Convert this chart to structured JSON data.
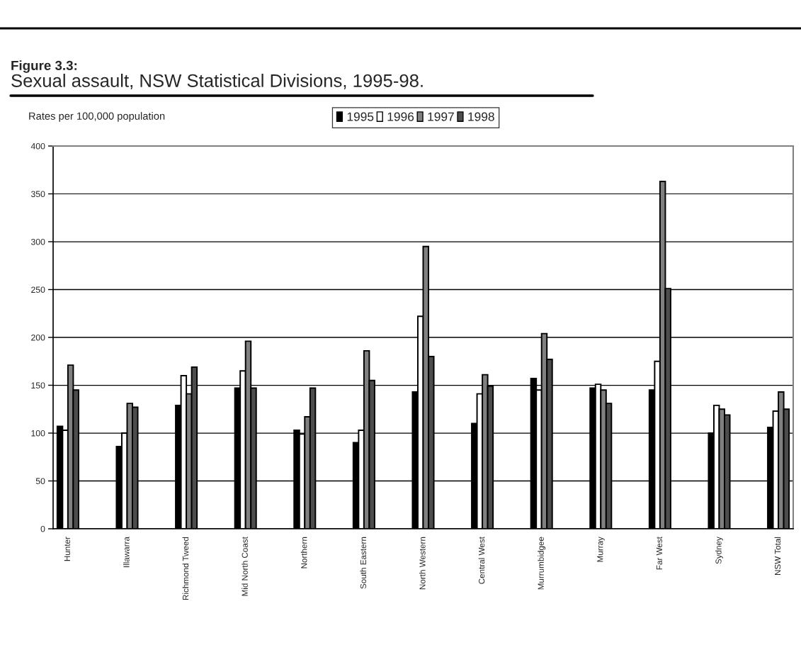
{
  "chart_data": {
    "type": "bar",
    "title": "Figure 3.3:",
    "subtitle": "Sexual assault, NSW Statistical Divisions, 1995-98.",
    "ylabel": "Rates per 100,000 population",
    "categories": [
      "Hunter",
      "Illawarra",
      "Richmond Tweed",
      "Mid North Coast",
      "Northern",
      "South Eastern",
      "North Western",
      "Central West",
      "Murrumbidgee",
      "Murray",
      "Far West",
      "Sydney",
      "NSW Total"
    ],
    "series": [
      {
        "name": "1995",
        "color": "#000000",
        "values": [
          107,
          86,
          129,
          147,
          103,
          90,
          143,
          110,
          157,
          147,
          145,
          100,
          106
        ]
      },
      {
        "name": "1996",
        "color": "#ffffff",
        "values": [
          103,
          100,
          160,
          165,
          99,
          103,
          222,
          141,
          145,
          151,
          175,
          129,
          123
        ]
      },
      {
        "name": "1997",
        "color": "#808080",
        "values": [
          171,
          131,
          141,
          196,
          117,
          186,
          295,
          161,
          204,
          145,
          363,
          125,
          143
        ]
      },
      {
        "name": "1998",
        "color": "#4d4d4d",
        "values": [
          145,
          127,
          169,
          147,
          147,
          155,
          180,
          149,
          177,
          131,
          251,
          119,
          125
        ]
      }
    ],
    "ylim": [
      0,
      400
    ],
    "yticks": [
      0,
      50,
      100,
      150,
      200,
      250,
      300,
      350,
      400
    ],
    "grid": "y",
    "legend": "top"
  }
}
